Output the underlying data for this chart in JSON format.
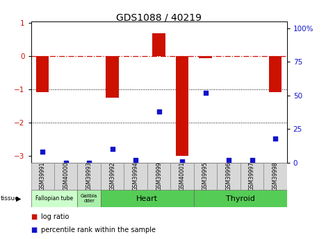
{
  "title": "GDS1088 / 40219",
  "samples": [
    "GSM39991",
    "GSM40000",
    "GSM39993",
    "GSM39992",
    "GSM39994",
    "GSM39999",
    "GSM40001",
    "GSM39995",
    "GSM39996",
    "GSM39997",
    "GSM39998"
  ],
  "log_ratios": [
    -1.08,
    0.0,
    0.0,
    -1.25,
    0.0,
    0.7,
    -3.0,
    -0.05,
    0.0,
    0.0,
    -1.08
  ],
  "percentile_ranks": [
    8,
    0,
    0,
    10,
    2,
    38,
    1,
    52,
    2,
    2,
    18
  ],
  "bar_color": "#cc1100",
  "dot_color": "#1111cc",
  "ylim_left": [
    -3.2,
    1.05
  ],
  "ylim_right": [
    0,
    105
  ],
  "yticks_left": [
    -3,
    -2,
    -1,
    0,
    1
  ],
  "yticks_right": [
    0,
    25,
    50,
    75,
    100
  ],
  "hline_y": 0,
  "dotted_lines": [
    -1,
    -2
  ],
  "tissue_configs": [
    {
      "label": "Fallopian tube",
      "start": 0,
      "end": 2,
      "color": "#ccffcc",
      "fontsize": 5.5
    },
    {
      "label": "Gallbla\ndder",
      "start": 2,
      "end": 3,
      "color": "#aaeeaa",
      "fontsize": 5
    },
    {
      "label": "Heart",
      "start": 3,
      "end": 7,
      "color": "#55cc55",
      "fontsize": 8
    },
    {
      "label": "Thyroid",
      "start": 7,
      "end": 11,
      "color": "#55cc55",
      "fontsize": 8
    }
  ],
  "background_color": "#ffffff"
}
